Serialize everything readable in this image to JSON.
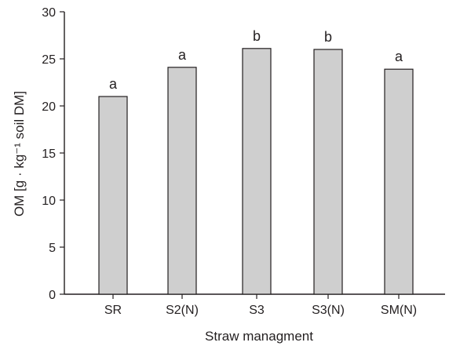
{
  "chart_data": {
    "type": "bar",
    "categories": [
      "SR",
      "S2(N)",
      "S3",
      "S3(N)",
      "SM(N)"
    ],
    "values": [
      21.0,
      24.1,
      26.1,
      26.0,
      23.9
    ],
    "significance_labels": [
      "a",
      "a",
      "b",
      "b",
      "a"
    ],
    "xlabel": "Straw managment",
    "ylabel": "OM [g · kg⁻¹ soil DM]",
    "ylim": [
      0,
      30
    ],
    "yticks": [
      0,
      5,
      10,
      15,
      20,
      25,
      30
    ],
    "bar_color": "#cfcfcf",
    "bar_edge_color": "#231f20",
    "grid": false
  }
}
